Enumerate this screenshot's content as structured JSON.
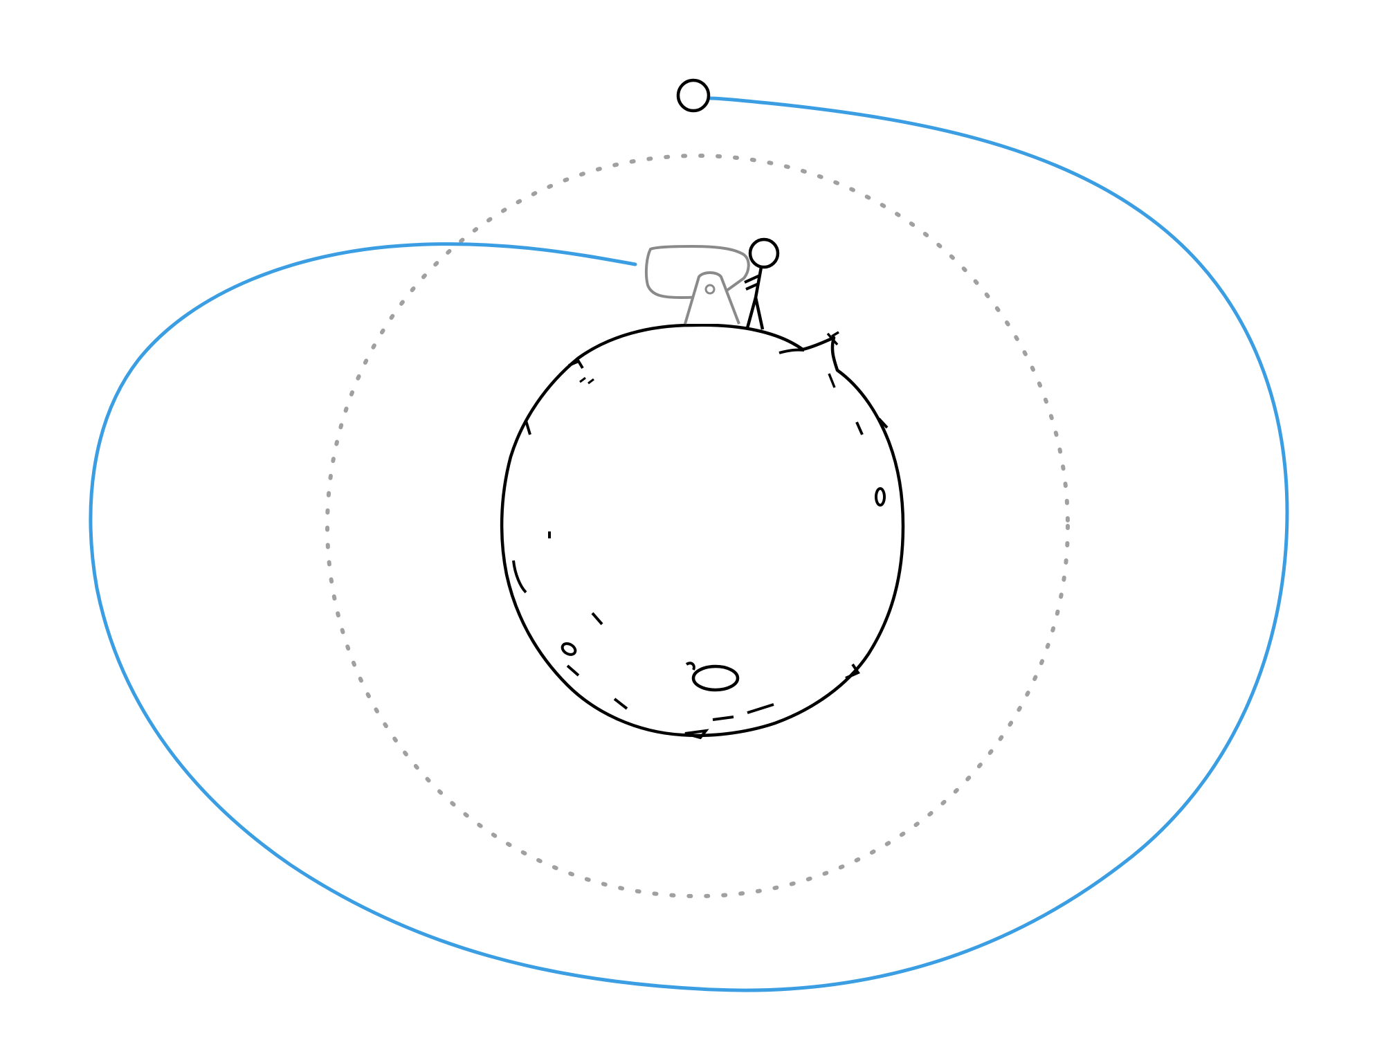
{
  "scene": {
    "kind": "hand-drawn comic illustration",
    "elements": [
      "small-planet",
      "stick-figure",
      "cannon",
      "dashed-circular-orbit",
      "blue-elliptical-trajectory",
      "projectile-ball"
    ]
  },
  "colors": {
    "background": "#ffffff",
    "ink": "#000000",
    "trajectory": "#3b9ee3",
    "orbit_dashes": "#a0a0a0",
    "cannon": "#8a8a8a"
  }
}
